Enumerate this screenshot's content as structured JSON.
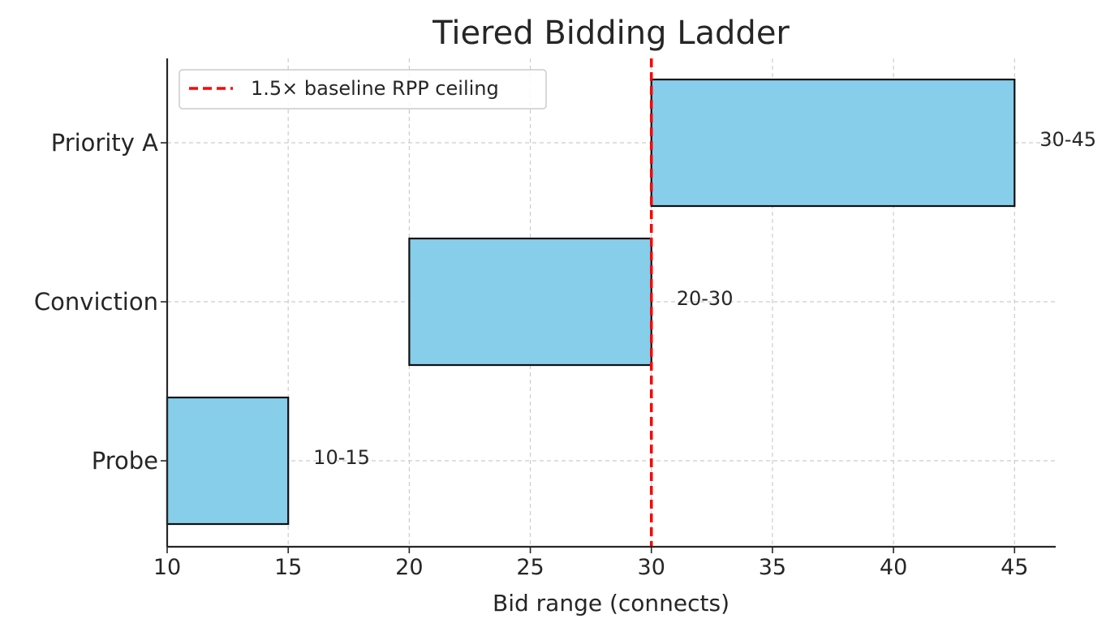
{
  "chart_data": {
    "type": "bar",
    "orientation": "horizontal",
    "title": "Tiered Bidding Ladder",
    "xlabel": "Bid range (connects)",
    "ylabel": "",
    "xlim": [
      10,
      46.7
    ],
    "xticks": [
      10,
      15,
      20,
      25,
      30,
      35,
      40,
      45
    ],
    "categories": [
      "Probe",
      "Conviction",
      "Priority A"
    ],
    "ranges": [
      {
        "category": "Probe",
        "start": 10,
        "end": 15,
        "label": "10-15"
      },
      {
        "category": "Conviction",
        "start": 20,
        "end": 30,
        "label": "20-30"
      },
      {
        "category": "Priority A",
        "start": 30,
        "end": 45,
        "label": "30-45"
      }
    ],
    "reference_line": {
      "value": 30,
      "label": "1.5× baseline RPP ceiling",
      "style": "dashed",
      "color": "#ff0000"
    },
    "grid": true,
    "legend_position": "top-left",
    "colors": {
      "bar": "#87ceeb",
      "bar_edge": "#111111",
      "grid": "#cccccc",
      "text": "#262626"
    }
  }
}
